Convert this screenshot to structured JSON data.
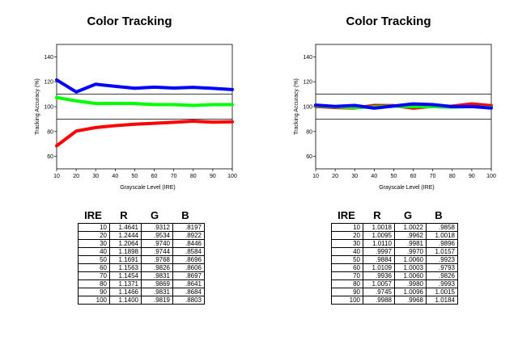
{
  "chart_data": [
    {
      "type": "line",
      "title": "Color Tracking",
      "xlabel": "Grayscale Level (IRE)",
      "ylabel": "Tracking Accuracy (%)",
      "xlim": [
        10,
        100
      ],
      "ylim": [
        50,
        150
      ],
      "xticks": [
        "10",
        "20",
        "30",
        "40",
        "50",
        "60",
        "70",
        "80",
        "90",
        "100"
      ],
      "yticks": [
        "60",
        "80",
        "100",
        "120",
        "140"
      ],
      "reference_lines": [
        90,
        110
      ],
      "x": [
        10,
        20,
        30,
        40,
        50,
        60,
        70,
        80,
        90,
        100
      ],
      "series": [
        {
          "color": "#ff0000",
          "values": [
            68.5,
            80.3,
            83.2,
            84.7,
            85.9,
            86.6,
            87.4,
            88.3,
            87.5,
            87.8
          ]
        },
        {
          "color": "#00ff00",
          "values": [
            107.3,
            104.6,
            102.5,
            102.6,
            102.5,
            101.6,
            101.6,
            101.0,
            101.6,
            101.6
          ]
        },
        {
          "color": "#0000ff",
          "values": [
            121.5,
            111.8,
            118.0,
            116.3,
            114.8,
            115.7,
            114.9,
            115.5,
            114.7,
            113.7
          ]
        }
      ],
      "table": {
        "headers": [
          "IRE",
          "R",
          "G",
          "B"
        ],
        "rows": [
          [
            "10",
            "1.4641",
            ".9312",
            ".8197"
          ],
          [
            "20",
            "1.2444",
            ".9534",
            ".8922"
          ],
          [
            "30",
            "1.2064",
            ".9740",
            ".8446"
          ],
          [
            "40",
            "1.1898",
            ".9744",
            ".8584"
          ],
          [
            "50",
            "1.1691",
            ".9768",
            ".8696"
          ],
          [
            "60",
            "1.1563",
            ".9826",
            ".8606"
          ],
          [
            "70",
            "1.1454",
            ".9831",
            ".8697"
          ],
          [
            "80",
            "1.1371",
            ".9869",
            ".8641"
          ],
          [
            "90",
            "1.1466",
            ".9831",
            ".8684"
          ],
          [
            "100",
            "1.1400",
            ".9819",
            ".8803"
          ]
        ]
      }
    },
    {
      "type": "line",
      "title": "Color Tracking",
      "xlabel": "Grayscale Level (IRE)",
      "ylabel": "Tracking Accuracy (%)",
      "xlim": [
        10,
        100
      ],
      "ylim": [
        50,
        150
      ],
      "xticks": [
        "10",
        "20",
        "30",
        "40",
        "50",
        "60",
        "70",
        "80",
        "90",
        "100"
      ],
      "yticks": [
        "60",
        "80",
        "100",
        "120",
        "140"
      ],
      "reference_lines": [
        90,
        110
      ],
      "x": [
        10,
        20,
        30,
        40,
        50,
        60,
        70,
        80,
        90,
        100
      ],
      "series": [
        {
          "color": "#ff0000",
          "values": [
            100.2,
            99.3,
            98.9,
            101.0,
            100.8,
            98.8,
            100.2,
            100.4,
            102.2,
            100.8
          ]
        },
        {
          "color": "#00ff00",
          "values": [
            100.7,
            99.8,
            99.2,
            99.8,
            100.5,
            100.0,
            100.0,
            99.6,
            100.0,
            99.3
          ]
        },
        {
          "color": "#0000ff",
          "values": [
            101.2,
            100.2,
            101.0,
            98.8,
            100.5,
            102.2,
            101.6,
            100.0,
            100.1,
            98.9
          ]
        }
      ],
      "table": {
        "headers": [
          "IRE",
          "R",
          "G",
          "B"
        ],
        "rows": [
          [
            "10",
            "1.0018",
            "1.0022",
            ".9858"
          ],
          [
            "20",
            "1.0095",
            ".9962",
            "1.0018"
          ],
          [
            "30",
            "1.0110",
            ".9981",
            ".9896"
          ],
          [
            "40",
            ".9997",
            ".9970",
            "1.0157"
          ],
          [
            "50",
            ".9884",
            "1.0060",
            ".9923"
          ],
          [
            "60",
            "1.0109",
            "1.0003",
            ".9793"
          ],
          [
            "70",
            ".9936",
            "1.0060",
            ".9826"
          ],
          [
            "80",
            "1.0057",
            ".9980",
            ".9993"
          ],
          [
            "90",
            ".9745",
            "1.0096",
            "1.0015"
          ],
          [
            "100",
            ".9988",
            ".9968",
            "1.0184"
          ]
        ]
      }
    }
  ]
}
